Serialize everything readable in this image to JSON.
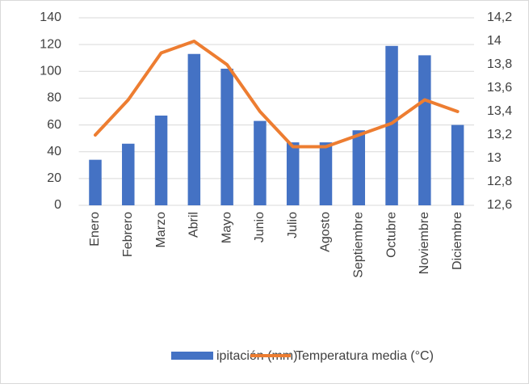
{
  "chart_data": {
    "type": "bar",
    "categories": [
      "Enero",
      "Febrero",
      "Marzo",
      "Abril",
      "Mayo",
      "Junio",
      "Julio",
      "Agosto",
      "Septiembre",
      "Octubre",
      "Noviembre",
      "Diciembre"
    ],
    "series": [
      {
        "name": "ipitación (mm)",
        "type": "bar",
        "color": "#4472c4",
        "values": [
          34,
          46,
          67,
          113,
          102,
          63,
          47,
          47,
          56,
          119,
          112,
          60
        ]
      },
      {
        "name": "Temperatura media (°C)",
        "type": "line",
        "axis": "y2",
        "color": "#ed7d31",
        "values": [
          13.2,
          13.5,
          13.9,
          14.0,
          13.8,
          13.4,
          13.1,
          13.1,
          13.2,
          13.3,
          13.5,
          13.4
        ]
      }
    ],
    "ylim": [
      0,
      140
    ],
    "yticks": [
      0,
      20,
      40,
      60,
      80,
      100,
      120,
      140
    ],
    "y2lim": [
      12.6,
      14.2
    ],
    "y2ticks": [
      {
        "value": 12.6,
        "label": "12,6"
      },
      {
        "value": 12.8,
        "label": "12,8"
      },
      13,
      {
        "value": 13.2,
        "label": "13,2"
      },
      {
        "value": 13.4,
        "label": "13,4"
      },
      {
        "value": 13.6,
        "label": "13,6"
      },
      {
        "value": 13.8,
        "label": "13,8"
      },
      14,
      {
        "value": 14.2,
        "label": "14,2"
      }
    ],
    "grid": true,
    "legend": "bottom"
  }
}
